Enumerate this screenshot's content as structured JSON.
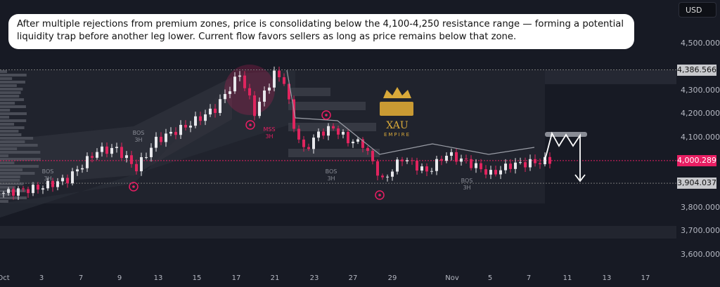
{
  "annotation": {
    "text": "After multiple rejections from premium zones, price is consolidating below the 4,100-4,250 resistance range — forming a potential liquidity trap before another leg lower. Current flow favors sellers as long as price remains below that zone."
  },
  "currency": "USD",
  "logo": {
    "name": "XAU",
    "sub": "EMPIRE"
  },
  "colors": {
    "background": "#171a24",
    "bull": "#e8e8ec",
    "bear": "#e0245e",
    "accent": "#e91e63"
  },
  "chart_data": {
    "type": "candlestick",
    "timeframe_labels": [
      "BOS 3H",
      "BOS 3H",
      "MSS 3H",
      "BOS 3H",
      "BOS 3H"
    ],
    "labels": [
      {
        "t": "BOS",
        "s": "3H"
      },
      {
        "t": "BOS",
        "s": "3H"
      },
      {
        "t": "MSS",
        "s": "3H"
      },
      {
        "t": "BOS",
        "s": "3H"
      },
      {
        "t": "BOS",
        "s": "3H"
      }
    ],
    "x_ticks": [
      "Oct",
      "3",
      "7",
      "9",
      "13",
      "15",
      "17",
      "21",
      "23",
      "27",
      "29",
      "Nov",
      "5",
      "7",
      "11",
      "13",
      "17"
    ],
    "y_ticks": [
      "4,500.000",
      "4,300.000",
      "4,200.000",
      "4,100.000",
      "3,800.000",
      "3,700.000",
      "3,600.000"
    ],
    "y_range": [
      3580,
      4630
    ],
    "price_labels": {
      "high": "4,386.566",
      "current": "4,000.289",
      "low": "3,904.037"
    },
    "levels": {
      "high": 4386.566,
      "current": 4000.289,
      "low": 3904.037
    },
    "price_path": [
      [
        0,
        3863
      ],
      [
        7,
        3884
      ],
      [
        13,
        3922
      ],
      [
        19,
        4042
      ],
      [
        23,
        4050
      ],
      [
        27,
        3967
      ],
      [
        31,
        4087
      ],
      [
        37,
        4146
      ],
      [
        43,
        4221
      ],
      [
        48,
        4370
      ],
      [
        51,
        4206
      ],
      [
        55,
        4370
      ],
      [
        57,
        4340
      ],
      [
        59,
        4146
      ],
      [
        61,
        4042
      ],
      [
        64,
        4116
      ],
      [
        67,
        4140
      ],
      [
        70,
        4087
      ],
      [
        73,
        4072
      ],
      [
        77,
        3913
      ],
      [
        81,
        4012
      ],
      [
        86,
        3952
      ],
      [
        90,
        4027
      ],
      [
        94,
        3997
      ],
      [
        99,
        3943
      ],
      [
        103,
        3982
      ],
      [
        111,
        4000
      ]
    ],
    "projection": "sell"
  }
}
